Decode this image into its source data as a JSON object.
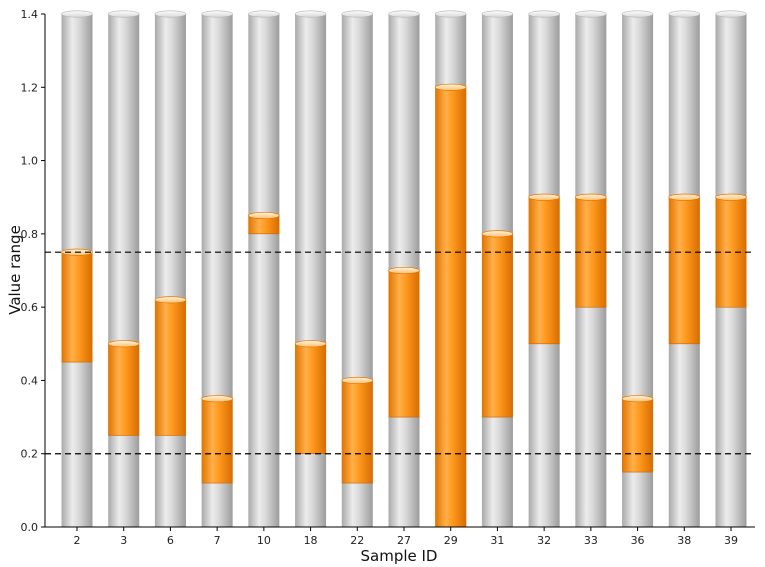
{
  "chart_data": {
    "type": "bar",
    "xlabel": "Sample ID",
    "ylabel": "Value range",
    "categories": [
      "2",
      "3",
      "6",
      "7",
      "10",
      "18",
      "22",
      "27",
      "29",
      "31",
      "32",
      "33",
      "36",
      "38",
      "39"
    ],
    "ranges": [
      [
        0.45,
        0.75
      ],
      [
        0.25,
        0.5
      ],
      [
        0.25,
        0.62
      ],
      [
        0.12,
        0.35
      ],
      [
        0.8,
        0.85
      ],
      [
        0.2,
        0.5
      ],
      [
        0.12,
        0.4
      ],
      [
        0.3,
        0.7
      ],
      [
        0.0,
        1.2
      ],
      [
        0.3,
        0.8
      ],
      [
        0.5,
        0.9
      ],
      [
        0.6,
        0.9
      ],
      [
        0.15,
        0.35
      ],
      [
        0.5,
        0.9
      ],
      [
        0.6,
        0.9
      ]
    ],
    "ylim": [
      0,
      1.4
    ],
    "yticks": [
      "0.0",
      "0.2",
      "0.4",
      "0.6",
      "0.8",
      "1.0",
      "1.2",
      "1.4"
    ],
    "reference_lines": [
      0.2,
      0.75
    ],
    "grid": false,
    "colors": {
      "range": "#ff8c00",
      "background_column": "#c8c8c8",
      "reference_line": "#000000"
    }
  }
}
